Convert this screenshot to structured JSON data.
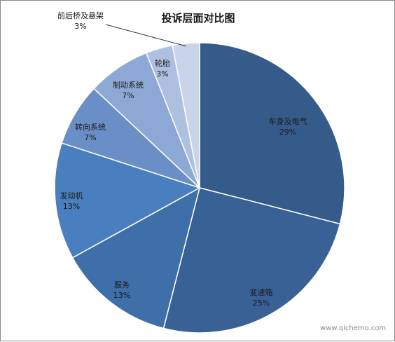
{
  "chart_data": {
    "type": "pie",
    "title": "投诉层面对比图",
    "slices": [
      {
        "label": "车身及电气",
        "value": 29,
        "pct_label": "29%",
        "color": "#345b8a"
      },
      {
        "label": "变速箱",
        "value": 25,
        "pct_label": "25%",
        "color": "#3a6196"
      },
      {
        "label": "服务",
        "value": 13,
        "pct_label": "13%",
        "color": "#3f6fa8"
      },
      {
        "label": "发动机",
        "value": 13,
        "pct_label": "13%",
        "color": "#4a7fbf"
      },
      {
        "label": "转向系统",
        "value": 7,
        "pct_label": "7%",
        "color": "#6a8fc6"
      },
      {
        "label": "制动系统",
        "value": 7,
        "pct_label": "7%",
        "color": "#8da8d4"
      },
      {
        "label": "轮胎",
        "value": 3,
        "pct_label": "3%",
        "color": "#adc0e0"
      },
      {
        "label": "前后桥及悬架",
        "value": 3,
        "pct_label": "3%",
        "color": "#c9d4ea"
      }
    ],
    "legend": "none",
    "start_angle": "12 o'clock",
    "direction": "clockwise"
  },
  "watermark": "www.qichemo.com"
}
